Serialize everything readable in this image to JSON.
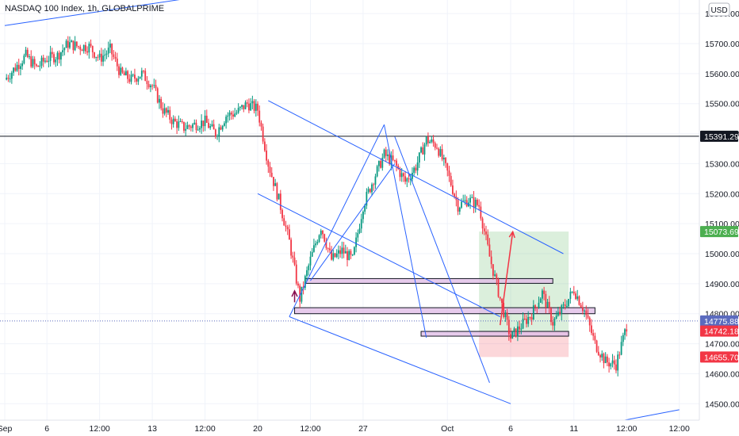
{
  "header": {
    "title": "NASDAQ 100 Index, 1h, GLOBALPRIME",
    "currency": "USD"
  },
  "chart_data": {
    "type": "candlestick",
    "title": "NASDAQ 100 Index, 1h, GLOBALPRIME",
    "ylim": [
      14440,
      15840
    ],
    "y_ticks": [
      14500,
      14600,
      14700,
      14800,
      14900,
      15000,
      15100,
      15200,
      15300,
      15400,
      15500,
      15600,
      15700,
      15800
    ],
    "y_tick_labels": [
      "14500.00",
      "14600.00",
      "14700.00",
      "14800.00",
      "14900.00",
      "15000.00",
      "15100.00",
      "15200.00",
      "15300.00",
      "15400.00",
      "15500.00",
      "15600.00",
      "15700.00",
      "15800.00"
    ],
    "x_ticks": [
      {
        "label": "Sep",
        "x": 0
      },
      {
        "label": "6",
        "x": 4
      },
      {
        "label": "12:00",
        "x": 9
      },
      {
        "label": "13",
        "x": 14
      },
      {
        "label": "12:00",
        "x": 19
      },
      {
        "label": "20",
        "x": 24
      },
      {
        "label": "12:00",
        "x": 29
      },
      {
        "label": "27",
        "x": 34
      },
      {
        "label": "Oct",
        "x": 42
      },
      {
        "label": "6",
        "x": 48
      },
      {
        "label": "11",
        "x": 54
      },
      {
        "label": "12:00",
        "x": 59
      },
      {
        "label": "12:00",
        "x": 64
      }
    ],
    "xlim": [
      0,
      65
    ],
    "grid": true,
    "price_levels": [
      {
        "value": 15391.29,
        "label": "15391.29",
        "color": "#131722"
      },
      {
        "value": 15073.69,
        "label": "15073.69",
        "color": "#4caf50"
      },
      {
        "value": 14775.88,
        "label": "14775.88",
        "color": "#5b6bbf"
      },
      {
        "value": 14742.18,
        "label": "14742.18",
        "color": "#f23645"
      },
      {
        "value": 14655.7,
        "label": "14655.70",
        "color": "#f23645"
      }
    ],
    "series": [
      {
        "type": "candles",
        "path_points": [
          [
            0,
            15580
          ],
          [
            1,
            15620
          ],
          [
            2,
            15660
          ],
          [
            3,
            15620
          ],
          [
            4,
            15650
          ],
          [
            5,
            15660
          ],
          [
            6,
            15700
          ],
          [
            7,
            15690
          ],
          [
            8,
            15690
          ],
          [
            9,
            15650
          ],
          [
            10,
            15680
          ],
          [
            11,
            15600
          ],
          [
            12,
            15580
          ],
          [
            13,
            15600
          ],
          [
            14,
            15560
          ],
          [
            15,
            15480
          ],
          [
            16,
            15440
          ],
          [
            17,
            15420
          ],
          [
            18,
            15430
          ],
          [
            19,
            15440
          ],
          [
            20,
            15400
          ],
          [
            21,
            15460
          ],
          [
            22,
            15470
          ],
          [
            23,
            15500
          ],
          [
            24,
            15480
          ],
          [
            25,
            15300
          ],
          [
            26,
            15180
          ],
          [
            27,
            15040
          ],
          [
            28,
            14850
          ],
          [
            29,
            14980
          ],
          [
            30,
            15090
          ],
          [
            31,
            14980
          ],
          [
            32,
            15010
          ],
          [
            33,
            14980
          ],
          [
            34,
            15160
          ],
          [
            35,
            15250
          ],
          [
            36,
            15330
          ],
          [
            37,
            15300
          ],
          [
            38,
            15240
          ],
          [
            39,
            15290
          ],
          [
            40,
            15380
          ],
          [
            41,
            15360
          ],
          [
            42,
            15270
          ],
          [
            43,
            15160
          ],
          [
            44,
            15180
          ],
          [
            45,
            15160
          ],
          [
            46,
            14990
          ],
          [
            47,
            14850
          ],
          [
            48,
            14720
          ],
          [
            49,
            14760
          ],
          [
            50,
            14800
          ],
          [
            51,
            14870
          ],
          [
            52,
            14770
          ],
          [
            53,
            14820
          ],
          [
            54,
            14880
          ],
          [
            55,
            14810
          ],
          [
            56,
            14700
          ],
          [
            57,
            14640
          ],
          [
            58,
            14630
          ],
          [
            59,
            14760
          ]
        ],
        "up_color": "#089981",
        "down_color": "#f23645"
      }
    ],
    "trend_lines": [
      {
        "from": [
          0,
          15760
        ],
        "to": [
          23,
          15880
        ],
        "color": "#2962ff"
      },
      {
        "from": [
          25,
          15510
        ],
        "to": [
          53,
          15000
        ],
        "color": "#2962ff"
      },
      {
        "from": [
          24,
          15200
        ],
        "to": [
          47,
          14790
        ],
        "color": "#2962ff"
      },
      {
        "from": [
          27,
          14790
        ],
        "to": [
          48,
          14500
        ],
        "color": "#2962ff"
      },
      {
        "from": [
          27,
          14790
        ],
        "to": [
          36,
          15430
        ],
        "color": "#2962ff"
      },
      {
        "from": [
          29,
          14910
        ],
        "to": [
          37,
          15300
        ],
        "color": "#2962ff"
      },
      {
        "from": [
          36,
          15430
        ],
        "to": [
          40,
          14720
        ],
        "color": "#2962ff"
      },
      {
        "from": [
          37,
          15390
        ],
        "to": [
          46,
          14570
        ],
        "color": "#2962ff"
      },
      {
        "from": [
          55,
          14420
        ],
        "to": [
          64,
          14480
        ],
        "color": "#2962ff"
      }
    ],
    "zones": [
      {
        "x0": 28.5,
        "x1": 52,
        "y0": 14905,
        "y1": 14917,
        "fill": "#e1bee7",
        "stroke": "#131722"
      },
      {
        "x0": 27.5,
        "x1": 56,
        "y0": 14800,
        "y1": 14820,
        "fill": "#e1bee7",
        "stroke": "#131722"
      },
      {
        "x0": 39.5,
        "x1": 53.5,
        "y0": 14729,
        "y1": 14741,
        "fill": "#e1bee7",
        "stroke": "#131722"
      }
    ],
    "position": {
      "x0": 45,
      "x1": 53.5,
      "entry": 14742.18,
      "target": 15073.69,
      "stop": 14655.7,
      "profit_color": "#4caf50",
      "loss_color": "#f23645"
    },
    "arrows": [
      {
        "from": [
          47,
          14762
        ],
        "to": [
          48.2,
          15073
        ],
        "color": "#f23645"
      },
      {
        "from": [
          27.5,
          14838
        ],
        "to": [
          27.5,
          14876
        ],
        "color": "#880e4f"
      }
    ]
  }
}
